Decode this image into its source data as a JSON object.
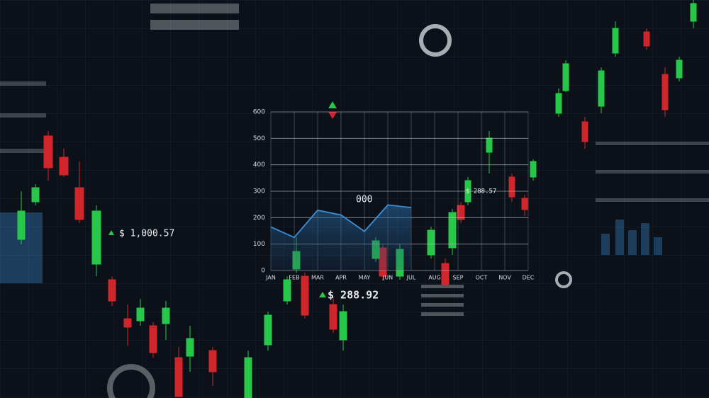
{
  "chart_data": {
    "type": "area",
    "categories": [
      "JAN",
      "FEB",
      "MAR",
      "APR",
      "MAY",
      "JUN",
      "JUL",
      "AUG",
      "SEP",
      "OCT",
      "NOV",
      "DEC"
    ],
    "series": [
      {
        "color": "#3b8fd6",
        "values": [
          165,
          125,
          228,
          210,
          148,
          248,
          238,
          null,
          null,
          null,
          null,
          null
        ]
      }
    ],
    "ylim": [
      0,
      600
    ],
    "yticks": [
      0,
      100,
      200,
      300,
      400,
      500,
      600
    ],
    "grid": true,
    "annotations": [
      "$ 1,000.57",
      "$ 288.92",
      "$ 288.57",
      "000"
    ]
  }
}
